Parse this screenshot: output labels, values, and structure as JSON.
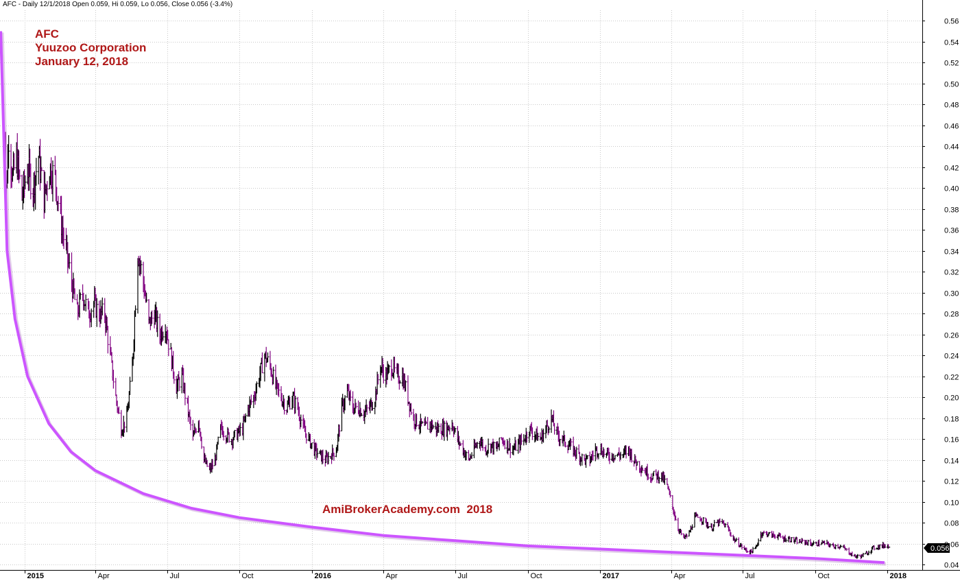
{
  "header": {
    "info": "AFC - Daily 12/1/2018 Open 0.059, Hi 0.059, Lo 0.056, Close 0.056 (-3.4%)"
  },
  "annotation": {
    "symbol": "AFC",
    "company": "Yuuzoo Corporation",
    "date": "January 12, 2018"
  },
  "watermark": "AmiBrokerAcademy.com  2018",
  "price_label": "0.056",
  "colors": {
    "down_bar": "#800080",
    "up_bar": "#000000",
    "trendline": "#cc55ff",
    "annotation_text": "#b01818",
    "grid": "#c8c8c8",
    "price_label_bg": "#000000"
  },
  "chart_data": {
    "type": "line",
    "style": "ohlc-bars",
    "title": "AFC - Daily 12/1/2018 Open 0.059, Hi 0.059, Lo 0.056, Close 0.056 (-3.4%)",
    "xlabel": "",
    "ylabel": "",
    "ylim": [
      0.035,
      0.57
    ],
    "yticks": [
      0.04,
      0.06,
      0.08,
      0.1,
      0.12,
      0.14,
      0.16,
      0.18,
      0.2,
      0.22,
      0.24,
      0.26,
      0.28,
      0.3,
      0.32,
      0.34,
      0.36,
      0.38,
      0.4,
      0.42,
      0.44,
      0.46,
      0.48,
      0.5,
      0.52,
      0.54,
      0.56
    ],
    "ytick_labels": [
      "0.04",
      "0.06",
      "0.08",
      "0.10",
      "0.12",
      "0.14",
      "0.16",
      "0.18",
      "0.20",
      "0.22",
      "0.24",
      "0.26",
      "0.28",
      "0.30",
      "0.32",
      "0.34",
      "0.36",
      "0.38",
      "0.40",
      "0.42",
      "0.44",
      "0.46",
      "0.48",
      "0.50",
      "0.52",
      "0.54",
      "0.56"
    ],
    "xlim": [
      "2014-12-01",
      "2018-02-14"
    ],
    "x_ticks": [
      {
        "date": "2015-01-01",
        "label": "2015",
        "bold": true
      },
      {
        "date": "2015-04-01",
        "label": "Apr",
        "bold": false
      },
      {
        "date": "2015-07-01",
        "label": "Jul",
        "bold": false
      },
      {
        "date": "2015-10-01",
        "label": "Oct",
        "bold": false
      },
      {
        "date": "2016-01-01",
        "label": "2016",
        "bold": true
      },
      {
        "date": "2016-04-01",
        "label": "Apr",
        "bold": false
      },
      {
        "date": "2016-07-01",
        "label": "Jul",
        "bold": false
      },
      {
        "date": "2016-10-01",
        "label": "Oct",
        "bold": false
      },
      {
        "date": "2017-01-01",
        "label": "2017",
        "bold": true
      },
      {
        "date": "2017-04-01",
        "label": "Apr",
        "bold": false
      },
      {
        "date": "2017-07-01",
        "label": "Jul",
        "bold": false
      },
      {
        "date": "2017-10-01",
        "label": "Oct",
        "bold": false
      },
      {
        "date": "2018-01-01",
        "label": "2018",
        "bold": true
      }
    ],
    "grid": true,
    "y_axis_position": "right",
    "series": [
      {
        "name": "AFC",
        "points": [
          {
            "date": "2014-12-03",
            "value": 0.52
          },
          {
            "date": "2014-12-08",
            "value": 0.38
          },
          {
            "date": "2014-12-12",
            "value": 0.45
          },
          {
            "date": "2014-12-17",
            "value": 0.41
          },
          {
            "date": "2014-12-22",
            "value": 0.43
          },
          {
            "date": "2014-12-29",
            "value": 0.39
          },
          {
            "date": "2015-01-05",
            "value": 0.42
          },
          {
            "date": "2015-01-12",
            "value": 0.4
          },
          {
            "date": "2015-01-19",
            "value": 0.43
          },
          {
            "date": "2015-01-26",
            "value": 0.39
          },
          {
            "date": "2015-02-02",
            "value": 0.42
          },
          {
            "date": "2015-02-09",
            "value": 0.41
          },
          {
            "date": "2015-02-16",
            "value": 0.37
          },
          {
            "date": "2015-02-23",
            "value": 0.34
          },
          {
            "date": "2015-03-02",
            "value": 0.31
          },
          {
            "date": "2015-03-09",
            "value": 0.28
          },
          {
            "date": "2015-03-16",
            "value": 0.3
          },
          {
            "date": "2015-03-23",
            "value": 0.28
          },
          {
            "date": "2015-03-30",
            "value": 0.29
          },
          {
            "date": "2015-04-06",
            "value": 0.28
          },
          {
            "date": "2015-04-13",
            "value": 0.28
          },
          {
            "date": "2015-04-20",
            "value": 0.24
          },
          {
            "date": "2015-04-27",
            "value": 0.2
          },
          {
            "date": "2015-05-04",
            "value": 0.17
          },
          {
            "date": "2015-05-11",
            "value": 0.18
          },
          {
            "date": "2015-05-18",
            "value": 0.23
          },
          {
            "date": "2015-05-25",
            "value": 0.34
          },
          {
            "date": "2015-06-01",
            "value": 0.31
          },
          {
            "date": "2015-06-08",
            "value": 0.27
          },
          {
            "date": "2015-06-15",
            "value": 0.28
          },
          {
            "date": "2015-06-22",
            "value": 0.26
          },
          {
            "date": "2015-06-29",
            "value": 0.27
          },
          {
            "date": "2015-07-06",
            "value": 0.24
          },
          {
            "date": "2015-07-13",
            "value": 0.21
          },
          {
            "date": "2015-07-20",
            "value": 0.22
          },
          {
            "date": "2015-07-27",
            "value": 0.19
          },
          {
            "date": "2015-08-03",
            "value": 0.16
          },
          {
            "date": "2015-08-10",
            "value": 0.18
          },
          {
            "date": "2015-08-17",
            "value": 0.14
          },
          {
            "date": "2015-08-24",
            "value": 0.13
          },
          {
            "date": "2015-08-31",
            "value": 0.14
          },
          {
            "date": "2015-09-07",
            "value": 0.17
          },
          {
            "date": "2015-09-14",
            "value": 0.165
          },
          {
            "date": "2015-09-21",
            "value": 0.16
          },
          {
            "date": "2015-09-28",
            "value": 0.165
          },
          {
            "date": "2015-10-05",
            "value": 0.17
          },
          {
            "date": "2015-10-12",
            "value": 0.19
          },
          {
            "date": "2015-10-19",
            "value": 0.2
          },
          {
            "date": "2015-10-26",
            "value": 0.22
          },
          {
            "date": "2015-11-02",
            "value": 0.24
          },
          {
            "date": "2015-11-09",
            "value": 0.23
          },
          {
            "date": "2015-11-16",
            "value": 0.21
          },
          {
            "date": "2015-11-23",
            "value": 0.2
          },
          {
            "date": "2015-11-30",
            "value": 0.19
          },
          {
            "date": "2015-12-07",
            "value": 0.2
          },
          {
            "date": "2015-12-14",
            "value": 0.19
          },
          {
            "date": "2015-12-21",
            "value": 0.17
          },
          {
            "date": "2015-12-28",
            "value": 0.16
          },
          {
            "date": "2016-01-04",
            "value": 0.15
          },
          {
            "date": "2016-01-11",
            "value": 0.145
          },
          {
            "date": "2016-01-18",
            "value": 0.14
          },
          {
            "date": "2016-01-25",
            "value": 0.145
          },
          {
            "date": "2016-02-01",
            "value": 0.15
          },
          {
            "date": "2016-02-08",
            "value": 0.19
          },
          {
            "date": "2016-02-15",
            "value": 0.205
          },
          {
            "date": "2016-02-22",
            "value": 0.19
          },
          {
            "date": "2016-02-29",
            "value": 0.19
          },
          {
            "date": "2016-03-07",
            "value": 0.185
          },
          {
            "date": "2016-03-14",
            "value": 0.19
          },
          {
            "date": "2016-03-21",
            "value": 0.2
          },
          {
            "date": "2016-03-28",
            "value": 0.23
          },
          {
            "date": "2016-04-04",
            "value": 0.22
          },
          {
            "date": "2016-04-11",
            "value": 0.23
          },
          {
            "date": "2016-04-18",
            "value": 0.22
          },
          {
            "date": "2016-04-25",
            "value": 0.22
          },
          {
            "date": "2016-05-02",
            "value": 0.2
          },
          {
            "date": "2016-05-09",
            "value": 0.18
          },
          {
            "date": "2016-05-16",
            "value": 0.175
          },
          {
            "date": "2016-05-23",
            "value": 0.17
          },
          {
            "date": "2016-05-30",
            "value": 0.175
          },
          {
            "date": "2016-06-06",
            "value": 0.17
          },
          {
            "date": "2016-06-13",
            "value": 0.17
          },
          {
            "date": "2016-06-20",
            "value": 0.17
          },
          {
            "date": "2016-06-27",
            "value": 0.175
          },
          {
            "date": "2016-07-04",
            "value": 0.16
          },
          {
            "date": "2016-07-11",
            "value": 0.15
          },
          {
            "date": "2016-07-18",
            "value": 0.14
          },
          {
            "date": "2016-07-25",
            "value": 0.15
          },
          {
            "date": "2016-08-01",
            "value": 0.16
          },
          {
            "date": "2016-08-08",
            "value": 0.15
          },
          {
            "date": "2016-08-15",
            "value": 0.155
          },
          {
            "date": "2016-08-22",
            "value": 0.15
          },
          {
            "date": "2016-08-29",
            "value": 0.16
          },
          {
            "date": "2016-09-05",
            "value": 0.155
          },
          {
            "date": "2016-09-12",
            "value": 0.15
          },
          {
            "date": "2016-09-19",
            "value": 0.155
          },
          {
            "date": "2016-09-26",
            "value": 0.16
          },
          {
            "date": "2016-10-03",
            "value": 0.17
          },
          {
            "date": "2016-10-10",
            "value": 0.165
          },
          {
            "date": "2016-10-17",
            "value": 0.16
          },
          {
            "date": "2016-10-24",
            "value": 0.17
          },
          {
            "date": "2016-10-31",
            "value": 0.18
          },
          {
            "date": "2016-11-07",
            "value": 0.165
          },
          {
            "date": "2016-11-14",
            "value": 0.16
          },
          {
            "date": "2016-11-21",
            "value": 0.155
          },
          {
            "date": "2016-11-28",
            "value": 0.15
          },
          {
            "date": "2016-12-05",
            "value": 0.145
          },
          {
            "date": "2016-12-12",
            "value": 0.14
          },
          {
            "date": "2016-12-19",
            "value": 0.14
          },
          {
            "date": "2016-12-26",
            "value": 0.15
          },
          {
            "date": "2017-01-02",
            "value": 0.15
          },
          {
            "date": "2017-01-09",
            "value": 0.145
          },
          {
            "date": "2017-01-16",
            "value": 0.145
          },
          {
            "date": "2017-01-23",
            "value": 0.145
          },
          {
            "date": "2017-01-30",
            "value": 0.145
          },
          {
            "date": "2017-02-06",
            "value": 0.15
          },
          {
            "date": "2017-02-13",
            "value": 0.14
          },
          {
            "date": "2017-02-20",
            "value": 0.135
          },
          {
            "date": "2017-02-27",
            "value": 0.13
          },
          {
            "date": "2017-03-06",
            "value": 0.125
          },
          {
            "date": "2017-03-13",
            "value": 0.125
          },
          {
            "date": "2017-03-20",
            "value": 0.125
          },
          {
            "date": "2017-03-27",
            "value": 0.115
          },
          {
            "date": "2017-04-03",
            "value": 0.095
          },
          {
            "date": "2017-04-10",
            "value": 0.075
          },
          {
            "date": "2017-04-17",
            "value": 0.065
          },
          {
            "date": "2017-04-24",
            "value": 0.07
          },
          {
            "date": "2017-05-01",
            "value": 0.085
          },
          {
            "date": "2017-05-08",
            "value": 0.085
          },
          {
            "date": "2017-05-15",
            "value": 0.08
          },
          {
            "date": "2017-05-22",
            "value": 0.075
          },
          {
            "date": "2017-05-29",
            "value": 0.08
          },
          {
            "date": "2017-06-05",
            "value": 0.08
          },
          {
            "date": "2017-06-12",
            "value": 0.075
          },
          {
            "date": "2017-06-19",
            "value": 0.065
          },
          {
            "date": "2017-06-26",
            "value": 0.06
          },
          {
            "date": "2017-07-03",
            "value": 0.055
          },
          {
            "date": "2017-07-10",
            "value": 0.052
          },
          {
            "date": "2017-07-17",
            "value": 0.055
          },
          {
            "date": "2017-07-24",
            "value": 0.07
          },
          {
            "date": "2017-07-31",
            "value": 0.07
          },
          {
            "date": "2017-08-07",
            "value": 0.068
          },
          {
            "date": "2017-08-14",
            "value": 0.068
          },
          {
            "date": "2017-08-21",
            "value": 0.065
          },
          {
            "date": "2017-08-28",
            "value": 0.065
          },
          {
            "date": "2017-09-04",
            "value": 0.063
          },
          {
            "date": "2017-09-11",
            "value": 0.062
          },
          {
            "date": "2017-09-18",
            "value": 0.062
          },
          {
            "date": "2017-09-25",
            "value": 0.06
          },
          {
            "date": "2017-10-02",
            "value": 0.06
          },
          {
            "date": "2017-10-09",
            "value": 0.061
          },
          {
            "date": "2017-10-16",
            "value": 0.06
          },
          {
            "date": "2017-10-23",
            "value": 0.058
          },
          {
            "date": "2017-10-30",
            "value": 0.058
          },
          {
            "date": "2017-11-06",
            "value": 0.056
          },
          {
            "date": "2017-11-13",
            "value": 0.052
          },
          {
            "date": "2017-11-20",
            "value": 0.048
          },
          {
            "date": "2017-11-27",
            "value": 0.048
          },
          {
            "date": "2017-12-04",
            "value": 0.05
          },
          {
            "date": "2017-12-11",
            "value": 0.055
          },
          {
            "date": "2017-12-18",
            "value": 0.057
          },
          {
            "date": "2017-12-25",
            "value": 0.058
          },
          {
            "date": "2018-01-01",
            "value": 0.059
          },
          {
            "date": "2018-01-03",
            "value": 0.056
          }
        ]
      },
      {
        "name": "trendline",
        "points": [
          {
            "date": "2014-12-02",
            "value": 0.55
          },
          {
            "date": "2014-12-10",
            "value": 0.34
          },
          {
            "date": "2014-12-20",
            "value": 0.275
          },
          {
            "date": "2015-01-05",
            "value": 0.22
          },
          {
            "date": "2015-02-01",
            "value": 0.175
          },
          {
            "date": "2015-03-01",
            "value": 0.148
          },
          {
            "date": "2015-04-01",
            "value": 0.13
          },
          {
            "date": "2015-06-01",
            "value": 0.108
          },
          {
            "date": "2015-08-01",
            "value": 0.094
          },
          {
            "date": "2015-10-01",
            "value": 0.085
          },
          {
            "date": "2016-01-01",
            "value": 0.076
          },
          {
            "date": "2016-04-01",
            "value": 0.068
          },
          {
            "date": "2016-07-01",
            "value": 0.063
          },
          {
            "date": "2016-10-01",
            "value": 0.058
          },
          {
            "date": "2017-01-01",
            "value": 0.055
          },
          {
            "date": "2017-04-01",
            "value": 0.052
          },
          {
            "date": "2017-07-01",
            "value": 0.049
          },
          {
            "date": "2017-10-01",
            "value": 0.046
          },
          {
            "date": "2017-12-28",
            "value": 0.042
          }
        ]
      }
    ]
  }
}
